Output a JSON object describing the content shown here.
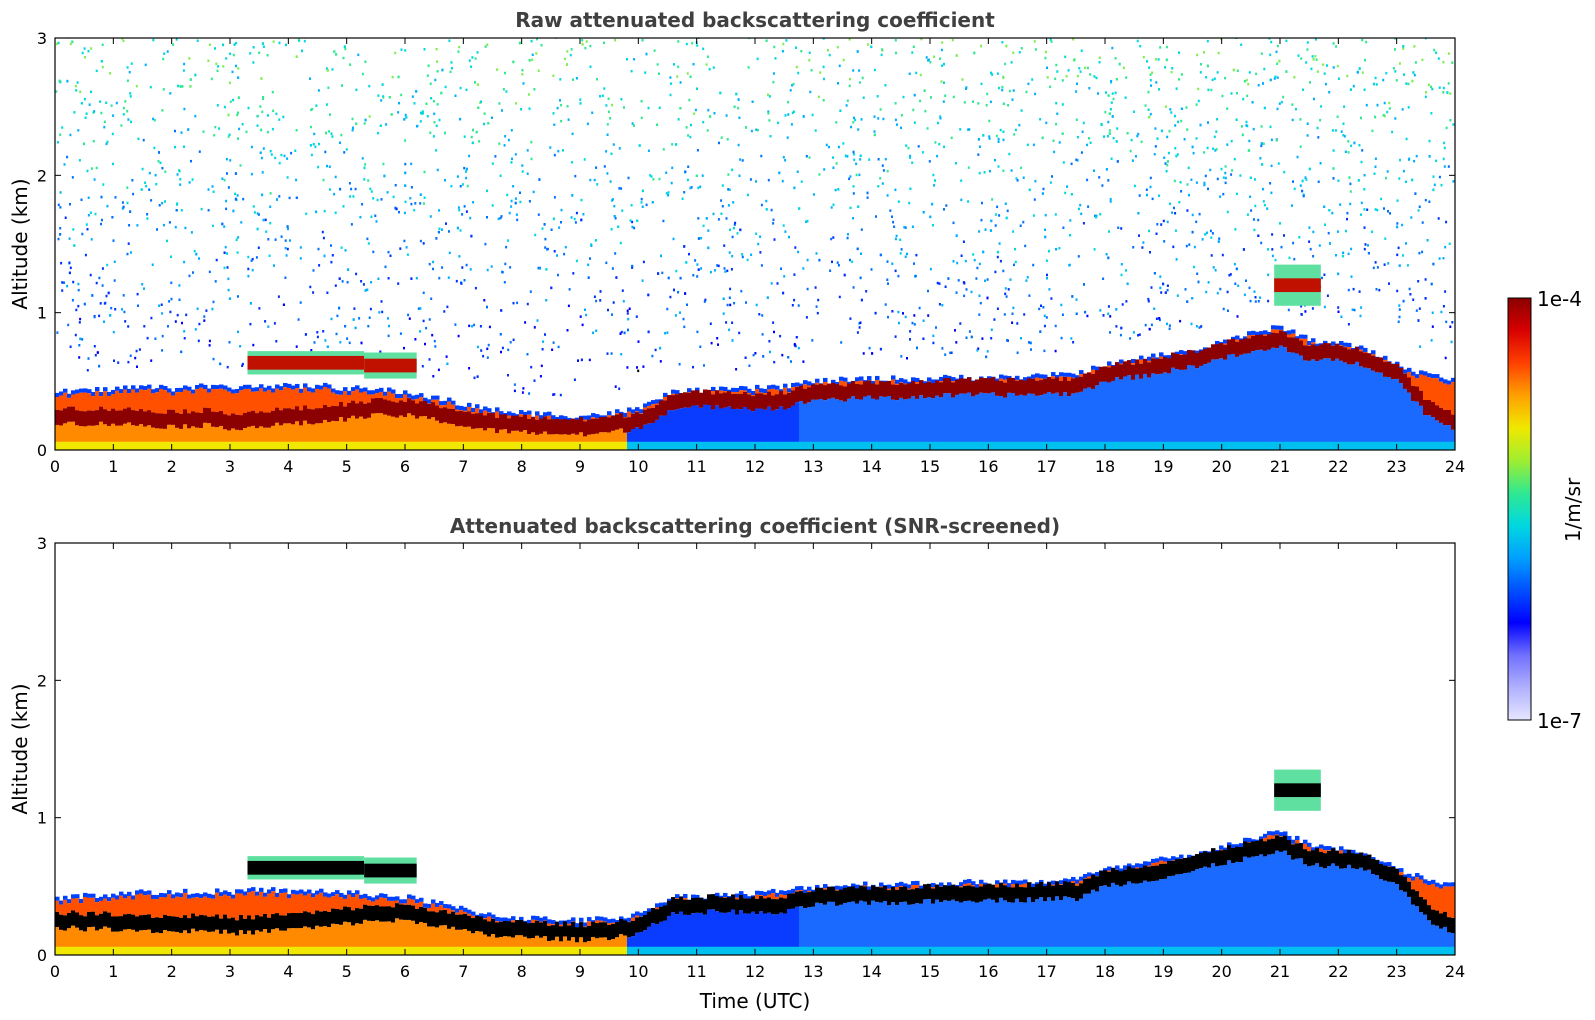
{
  "chart_data": [
    {
      "type": "heatmap",
      "title": "Raw attenuated backscattering coefficient",
      "xlabel": "",
      "ylabel": "Altitude (km)",
      "xlim": [
        0,
        24
      ],
      "ylim": [
        0,
        3
      ],
      "x_ticks": [
        0,
        1,
        2,
        3,
        4,
        5,
        6,
        7,
        8,
        9,
        10,
        11,
        12,
        13,
        14,
        15,
        16,
        17,
        18,
        19,
        20,
        21,
        22,
        23,
        24
      ],
      "y_ticks": [
        0,
        1,
        2,
        3
      ],
      "noise": true,
      "layers": {
        "x": [
          0,
          0.5,
          1,
          1.5,
          2,
          2.5,
          3,
          3.5,
          4,
          4.5,
          5,
          5.5,
          6,
          6.5,
          7,
          7.5,
          8,
          8.5,
          9,
          9.5,
          10,
          10.5,
          11,
          11.5,
          12,
          12.5,
          13,
          13.5,
          14,
          14.5,
          15,
          15.5,
          16,
          16.5,
          17,
          17.5,
          18,
          18.5,
          19,
          19.5,
          20,
          20.5,
          21,
          21.5,
          22,
          22.5,
          23,
          23.5,
          24
        ],
        "boundary_layer_top_km": [
          0.42,
          0.43,
          0.45,
          0.46,
          0.45,
          0.47,
          0.45,
          0.48,
          0.46,
          0.47,
          0.45,
          0.44,
          0.42,
          0.38,
          0.33,
          0.29,
          0.27,
          0.26,
          0.25,
          0.27,
          0.3,
          0.42,
          0.43,
          0.44,
          0.45,
          0.47,
          0.5,
          0.51,
          0.52,
          0.52,
          0.52,
          0.53,
          0.53,
          0.53,
          0.54,
          0.56,
          0.62,
          0.66,
          0.7,
          0.72,
          0.8,
          0.85,
          0.9,
          0.8,
          0.78,
          0.72,
          0.62,
          0.55,
          0.5
        ],
        "peak_height_km": [
          0.25,
          0.24,
          0.24,
          0.23,
          0.22,
          0.23,
          0.21,
          0.22,
          0.24,
          0.25,
          0.28,
          0.3,
          0.3,
          0.27,
          0.22,
          0.19,
          0.18,
          0.17,
          0.16,
          0.18,
          0.21,
          0.34,
          0.36,
          0.37,
          0.35,
          0.36,
          0.42,
          0.42,
          0.43,
          0.43,
          0.44,
          0.45,
          0.45,
          0.45,
          0.46,
          0.46,
          0.56,
          0.58,
          0.62,
          0.66,
          0.72,
          0.76,
          0.8,
          0.7,
          0.7,
          0.66,
          0.55,
          0.3,
          0.2
        ]
      },
      "elevated_layers": [
        {
          "x_start": 3.3,
          "x_end": 5.3,
          "bottom_km": 0.55,
          "top_km": 0.72
        },
        {
          "x_start": 5.3,
          "x_end": 6.2,
          "bottom_km": 0.52,
          "top_km": 0.71
        },
        {
          "x_start": 20.9,
          "x_end": 21.7,
          "bottom_km": 1.05,
          "top_km": 1.35
        }
      ]
    },
    {
      "type": "heatmap",
      "title": "Attenuated backscattering coefficient (SNR-screened)",
      "xlabel": "Time (UTC)",
      "ylabel": "Altitude (km)",
      "xlim": [
        0,
        24
      ],
      "ylim": [
        0,
        3
      ],
      "x_ticks": [
        0,
        1,
        2,
        3,
        4,
        5,
        6,
        7,
        8,
        9,
        10,
        11,
        12,
        13,
        14,
        15,
        16,
        17,
        18,
        19,
        20,
        21,
        22,
        23,
        24
      ],
      "y_ticks": [
        0,
        1,
        2,
        3
      ],
      "noise": false
    }
  ],
  "colorbar": {
    "label": "1/m/sr",
    "max_label": "1e-4",
    "min_label": "1e-7",
    "scale": "log",
    "colors": [
      "#e6e6ff",
      "#b0b0ff",
      "#7070ff",
      "#0000ff",
      "#0050ff",
      "#00a0ff",
      "#00d8e0",
      "#30e890",
      "#a0ee30",
      "#f0e800",
      "#ffa000",
      "#ff4000",
      "#d80000",
      "#8b0000"
    ]
  }
}
